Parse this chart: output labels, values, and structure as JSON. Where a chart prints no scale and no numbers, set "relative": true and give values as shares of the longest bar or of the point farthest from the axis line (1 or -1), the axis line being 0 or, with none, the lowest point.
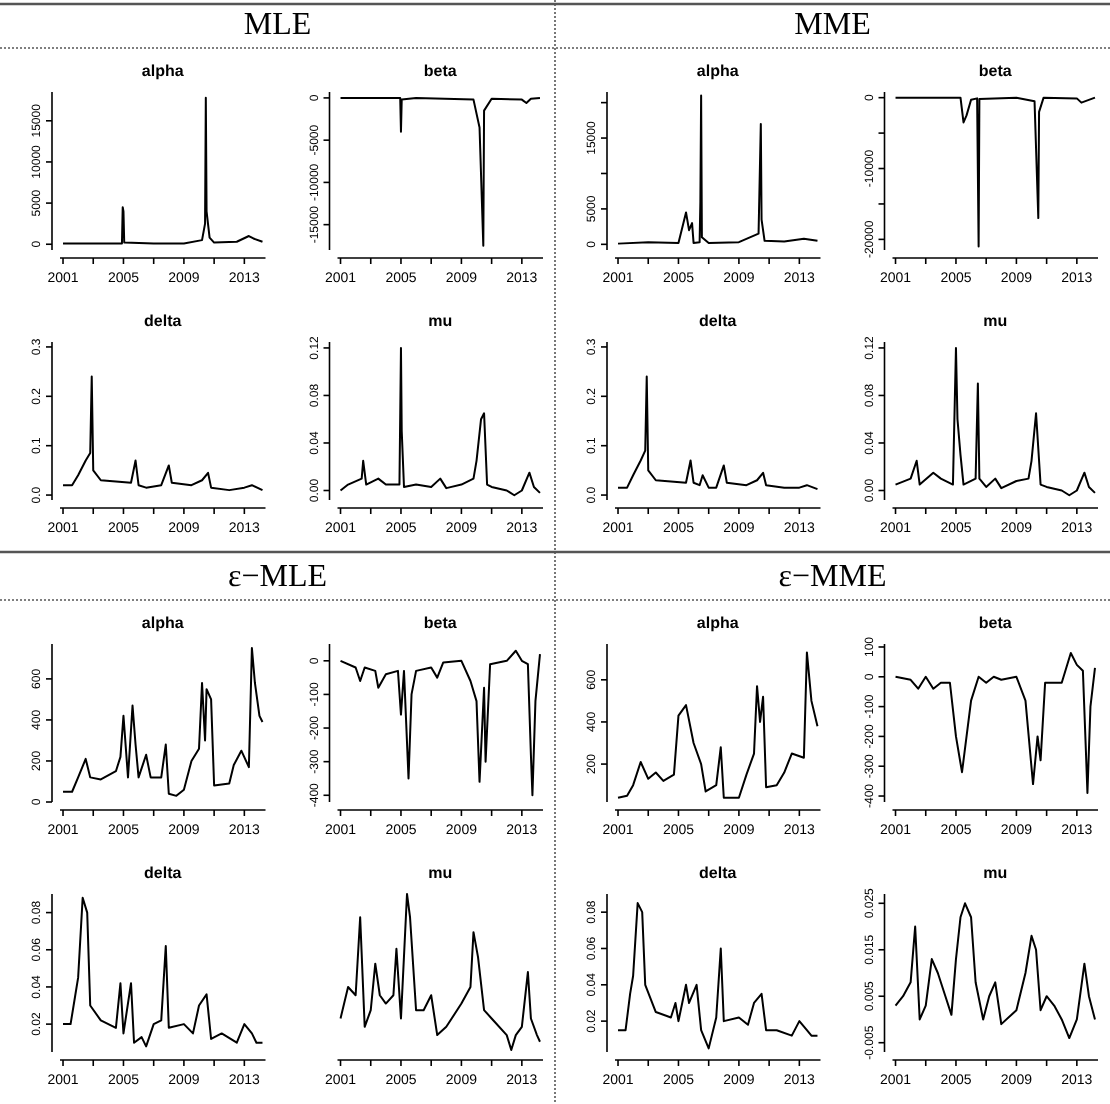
{
  "chart_data": [
    {
      "type": "other",
      "title": "MLE"
    },
    {
      "type": "line",
      "title": "alpha",
      "color": "#000000",
      "xlim": [
        2000.8,
        2014.4
      ],
      "xticks": [
        2001,
        {
          "value": 2003,
          "label": null
        },
        2005,
        {
          "value": 2007,
          "label": null
        },
        2009,
        {
          "value": 2011,
          "label": null
        },
        2013
      ],
      "ylim": [
        -700,
        18500
      ],
      "yticks": [
        0,
        5000,
        10000,
        15000
      ],
      "x": [
        2001,
        2003,
        2004.9,
        2004.95,
        2005,
        2005.05,
        2007,
        2009,
        2010.2,
        2010.4,
        2010.45,
        2010.5,
        2010.7,
        2011,
        2012.5,
        2013.3,
        2013.6,
        2014.2
      ],
      "values": [
        100,
        100,
        100,
        4500,
        4000,
        200,
        100,
        100,
        500,
        2500,
        17800,
        4000,
        800,
        200,
        300,
        1000,
        700,
        300
      ]
    },
    {
      "type": "line",
      "title": "beta",
      "color": "#000000",
      "xlim": [
        2000.8,
        2014.4
      ],
      "xticks": [
        2001,
        {
          "value": 2003,
          "label": null
        },
        2005,
        {
          "value": 2007,
          "label": null
        },
        2009,
        {
          "value": 2011,
          "label": null
        },
        2013
      ],
      "ylim": [
        -18000,
        700
      ],
      "yticks": [
        0,
        -5000,
        -10000,
        -15000
      ],
      "x": [
        2001,
        2004.95,
        2005,
        2005.05,
        2006,
        2009.8,
        2010.2,
        2010.45,
        2010.5,
        2011,
        2013,
        2013.3,
        2013.6,
        2014.2
      ],
      "values": [
        0,
        0,
        -4000,
        -200,
        0,
        -200,
        -3500,
        -17500,
        -1500,
        -100,
        -200,
        -600,
        -100,
        0
      ]
    },
    {
      "type": "line",
      "title": "delta",
      "color": "#000000",
      "xlim": [
        2000.8,
        2014.4
      ],
      "xticks": [
        2001,
        {
          "value": 2003,
          "label": null
        },
        2005,
        {
          "value": 2007,
          "label": null
        },
        2009,
        {
          "value": 2011,
          "label": null
        },
        2013
      ],
      "ylim": [
        -0.01,
        0.31
      ],
      "yticks": [
        {
          "value": 0,
          "label": "0.0"
        },
        0.1,
        0.2,
        0.3
      ],
      "x": [
        2001,
        2001.6,
        2002,
        2002.5,
        2002.8,
        2002.9,
        2003,
        2003.5,
        2005.5,
        2005.8,
        2006,
        2006.5,
        2007.5,
        2008,
        2008.2,
        2009.5,
        2010.2,
        2010.6,
        2010.8,
        2012,
        2013,
        2013.5,
        2014.2
      ],
      "values": [
        0.02,
        0.02,
        0.04,
        0.07,
        0.085,
        0.24,
        0.05,
        0.03,
        0.025,
        0.07,
        0.02,
        0.015,
        0.02,
        0.06,
        0.025,
        0.02,
        0.03,
        0.045,
        0.015,
        0.01,
        0.015,
        0.02,
        0.01
      ]
    },
    {
      "type": "line",
      "title": "mu",
      "color": "#000000",
      "xlim": [
        2000.8,
        2014.4
      ],
      "xticks": [
        2001,
        {
          "value": 2003,
          "label": null
        },
        2005,
        {
          "value": 2007,
          "label": null
        },
        2009,
        {
          "value": 2011,
          "label": null
        },
        2013
      ],
      "ylim": [
        -0.008,
        0.125
      ],
      "yticks": [
        {
          "value": 0,
          "label": "0.00"
        },
        0.04,
        0.08,
        0.12
      ],
      "x": [
        2001,
        2001.5,
        2002.4,
        2002.5,
        2002.7,
        2003.5,
        2004,
        2004.9,
        2005,
        2005.05,
        2005.2,
        2006,
        2007,
        2007.6,
        2008,
        2009,
        2009.8,
        2010,
        2010.3,
        2010.5,
        2010.7,
        2011,
        2012,
        2012.5,
        2013,
        2013.5,
        2013.8,
        2014.2
      ],
      "values": [
        0,
        0.005,
        0.01,
        0.025,
        0.005,
        0.01,
        0.005,
        0.005,
        0.12,
        0.05,
        0.003,
        0.005,
        0.003,
        0.01,
        0.002,
        0.005,
        0.01,
        0.025,
        0.06,
        0.065,
        0.005,
        0.003,
        0,
        -0.004,
        0,
        0.015,
        0.003,
        -0.002
      ]
    },
    {
      "type": "other",
      "title": "MME"
    },
    {
      "type": "line",
      "title": "alpha",
      "color": "#000000",
      "xlim": [
        2000.8,
        2014.4
      ],
      "xticks": [
        2001,
        {
          "value": 2003,
          "label": null
        },
        2005,
        {
          "value": 2007,
          "label": null
        },
        2009,
        {
          "value": 2011,
          "label": null
        },
        2013
      ],
      "ylim": [
        -800,
        21500
      ],
      "yticks": [
        0,
        5000,
        {
          "value": 10000,
          "label": null
        },
        15000,
        {
          "value": 20000,
          "label": null
        }
      ],
      "x": [
        2001,
        2003,
        2005,
        2005.5,
        2005.7,
        2005.9,
        2006,
        2006.4,
        2006.45,
        2006.5,
        2006.55,
        2007,
        2009,
        2010.3,
        2010.45,
        2010.5,
        2010.7,
        2012,
        2013.3,
        2014.2
      ],
      "values": [
        100,
        300,
        200,
        4500,
        2000,
        3000,
        200,
        300,
        6000,
        21000,
        1000,
        200,
        300,
        1500,
        17000,
        3500,
        500,
        400,
        800,
        500
      ]
    },
    {
      "type": "line",
      "title": "beta",
      "color": "#000000",
      "xlim": [
        2000.8,
        2014.4
      ],
      "xticks": [
        2001,
        {
          "value": 2003,
          "label": null
        },
        2005,
        {
          "value": 2007,
          "label": null
        },
        2009,
        {
          "value": 2011,
          "label": null
        },
        2013
      ],
      "ylim": [
        -21500,
        800
      ],
      "yticks": [
        0,
        {
          "value": -5000,
          "label": null
        },
        -10000,
        {
          "value": -15000,
          "label": null
        },
        -20000
      ],
      "x": [
        2001,
        2005.3,
        2005.5,
        2005.7,
        2006,
        2006.4,
        2006.5,
        2006.55,
        2009,
        2010.2,
        2010.45,
        2010.5,
        2010.8,
        2013,
        2013.3,
        2014.2
      ],
      "values": [
        0,
        0,
        -3500,
        -2500,
        -300,
        -100,
        -21000,
        -200,
        0,
        -500,
        -17000,
        -2000,
        0,
        -100,
        -700,
        0
      ]
    },
    {
      "type": "line",
      "title": "delta",
      "color": "#000000",
      "xlim": [
        2000.8,
        2014.4
      ],
      "xticks": [
        2001,
        {
          "value": 2003,
          "label": null
        },
        2005,
        {
          "value": 2007,
          "label": null
        },
        2009,
        {
          "value": 2011,
          "label": null
        },
        2013
      ],
      "ylim": [
        -0.01,
        0.31
      ],
      "yticks": [
        {
          "value": 0,
          "label": "0.0"
        },
        0.1,
        0.2,
        0.3
      ],
      "x": [
        2001,
        2001.6,
        2002,
        2002.5,
        2002.8,
        2002.9,
        2003,
        2003.5,
        2005.5,
        2005.8,
        2006,
        2006.4,
        2006.6,
        2007,
        2007.5,
        2008,
        2008.2,
        2009.5,
        2010.2,
        2010.6,
        2010.8,
        2012,
        2013,
        2013.5,
        2014.2
      ],
      "values": [
        0.015,
        0.015,
        0.04,
        0.07,
        0.09,
        0.24,
        0.05,
        0.03,
        0.025,
        0.07,
        0.025,
        0.02,
        0.04,
        0.015,
        0.015,
        0.06,
        0.025,
        0.02,
        0.03,
        0.045,
        0.02,
        0.015,
        0.015,
        0.02,
        0.012
      ]
    },
    {
      "type": "line",
      "title": "mu",
      "color": "#000000",
      "xlim": [
        2000.8,
        2014.4
      ],
      "xticks": [
        2001,
        {
          "value": 2003,
          "label": null
        },
        2005,
        {
          "value": 2007,
          "label": null
        },
        2009,
        {
          "value": 2011,
          "label": null
        },
        2013
      ],
      "ylim": [
        -0.008,
        0.125
      ],
      "yticks": [
        {
          "value": 0,
          "label": "0.00"
        },
        0.04,
        0.08,
        0.12
      ],
      "x": [
        2001,
        2002,
        2002.4,
        2002.6,
        2003.5,
        2004,
        2004.8,
        2005,
        2005.1,
        2005.3,
        2005.5,
        2006.3,
        2006.45,
        2006.55,
        2007,
        2007.6,
        2008,
        2009,
        2009.8,
        2010,
        2010.3,
        2010.6,
        2011,
        2012,
        2012.5,
        2013,
        2013.5,
        2013.8,
        2014.2
      ],
      "values": [
        0.005,
        0.01,
        0.025,
        0.005,
        0.015,
        0.01,
        0.005,
        0.12,
        0.06,
        0.03,
        0.005,
        0.01,
        0.09,
        0.01,
        0.003,
        0.01,
        0.002,
        0.008,
        0.01,
        0.025,
        0.065,
        0.005,
        0.003,
        0,
        -0.004,
        0,
        0.015,
        0.003,
        -0.002
      ]
    },
    {
      "type": "other",
      "title": "ε−MLE"
    },
    {
      "type": "line",
      "title": "alpha",
      "color": "#000000",
      "xlim": [
        2000.8,
        2014.4
      ],
      "xticks": [
        2001,
        {
          "value": 2003,
          "label": null
        },
        2005,
        {
          "value": 2007,
          "label": null
        },
        2009,
        {
          "value": 2011,
          "label": null
        },
        2013
      ],
      "ylim": [
        0,
        770
      ],
      "yticks": [
        0,
        200,
        400,
        600
      ],
      "x": [
        2001,
        2001.6,
        2002,
        2002.5,
        2002.8,
        2003.5,
        2004.5,
        2004.8,
        2005,
        2005.3,
        2005.6,
        2005.8,
        2006,
        2006.5,
        2006.8,
        2007.5,
        2007.8,
        2008,
        2008.5,
        2009,
        2009.5,
        2010,
        2010.2,
        2010.4,
        2010.5,
        2010.8,
        2011,
        2012,
        2012.3,
        2012.8,
        2013.3,
        2013.5,
        2013.7,
        2014,
        2014.2
      ],
      "values": [
        50,
        50,
        120,
        210,
        120,
        110,
        150,
        220,
        420,
        120,
        470,
        280,
        120,
        230,
        120,
        120,
        280,
        40,
        30,
        60,
        200,
        260,
        580,
        300,
        550,
        500,
        80,
        90,
        180,
        250,
        170,
        750,
        580,
        420,
        390
      ]
    },
    {
      "type": "line",
      "title": "beta",
      "color": "#000000",
      "xlim": [
        2000.8,
        2014.4
      ],
      "xticks": [
        2001,
        {
          "value": 2003,
          "label": null
        },
        2005,
        {
          "value": 2007,
          "label": null
        },
        2009,
        {
          "value": 2011,
          "label": null
        },
        2013
      ],
      "ylim": [
        -420,
        50
      ],
      "yticks": [
        0,
        -100,
        -200,
        -300,
        -400
      ],
      "x": [
        2001,
        2002,
        2002.3,
        2002.6,
        2003.3,
        2003.5,
        2004,
        2004.8,
        2005,
        2005.2,
        2005.5,
        2005.7,
        2006,
        2007,
        2007.4,
        2007.8,
        2009,
        2009.6,
        2010,
        2010.2,
        2010.5,
        2010.6,
        2010.9,
        2012,
        2012.6,
        2013,
        2013.4,
        2013.6,
        2013.7,
        2013.9,
        2014.2
      ],
      "values": [
        0,
        -20,
        -60,
        -20,
        -30,
        -80,
        -40,
        -30,
        -160,
        -30,
        -350,
        -100,
        -30,
        -20,
        -50,
        -5,
        0,
        -60,
        -120,
        -360,
        -80,
        -300,
        -10,
        0,
        30,
        0,
        -10,
        -280,
        -400,
        -120,
        20
      ]
    },
    {
      "type": "line",
      "title": "delta",
      "color": "#000000",
      "xlim": [
        2000.8,
        2014.4
      ],
      "xticks": [
        2001,
        {
          "value": 2003,
          "label": null
        },
        2005,
        {
          "value": 2007,
          "label": null
        },
        2009,
        {
          "value": 2011,
          "label": null
        },
        2013
      ],
      "ylim": [
        0.005,
        0.09
      ],
      "yticks": [
        0.02,
        0.04,
        0.06,
        0.08
      ],
      "x": [
        2001,
        2001.5,
        2001.8,
        2002,
        2002.3,
        2002.6,
        2002.8,
        2003.5,
        2004.5,
        2004.8,
        2005,
        2005.5,
        2005.7,
        2006.2,
        2006.5,
        2007,
        2007.5,
        2007.8,
        2008,
        2009,
        2009.6,
        2010,
        2010.5,
        2010.8,
        2011.5,
        2012.5,
        2013,
        2013.5,
        2013.8,
        2014.2
      ],
      "values": [
        0.02,
        0.02,
        0.035,
        0.045,
        0.088,
        0.08,
        0.03,
        0.022,
        0.018,
        0.042,
        0.015,
        0.042,
        0.01,
        0.013,
        0.008,
        0.02,
        0.022,
        0.062,
        0.018,
        0.02,
        0.015,
        0.03,
        0.036,
        0.012,
        0.015,
        0.01,
        0.02,
        0.015,
        0.01,
        0.01
      ]
    },
    {
      "type": "line",
      "title": "mu",
      "color": "#000000",
      "relative": true,
      "tick_labels": "x",
      "xlim": [
        2000.8,
        2014.4
      ],
      "xticks": [
        2001,
        {
          "value": 2003,
          "label": null
        },
        2005,
        {
          "value": 2007,
          "label": null
        },
        2009,
        {
          "value": 2011,
          "label": null
        },
        2013
      ],
      "x": [
        2001,
        2001.5,
        2002,
        2002.3,
        2002.6,
        2003,
        2003.3,
        2003.6,
        2004,
        2004.5,
        2004.7,
        2005,
        2005.4,
        2005.6,
        2006,
        2006.5,
        2007,
        2007.4,
        2008,
        2009,
        2009.6,
        2009.8,
        2010.1,
        2010.5,
        2011,
        2012,
        2012.3,
        2012.6,
        2013,
        2013.4,
        2013.6,
        2014,
        2014.2
      ],
      "values": [
        0.25,
        0.44,
        0.39,
        0.86,
        0.2,
        0.3,
        0.58,
        0.39,
        0.34,
        0.39,
        0.67,
        0.25,
        1,
        0.86,
        0.3,
        0.3,
        0.39,
        0.15,
        0.2,
        0.34,
        0.44,
        0.77,
        0.62,
        0.3,
        0.25,
        0.15,
        0.06,
        0.15,
        0.2,
        0.53,
        0.25,
        0.15,
        0.11
      ]
    },
    {
      "type": "other",
      "title": "ε−MME"
    },
    {
      "type": "line",
      "title": "alpha",
      "color": "#000000",
      "xlim": [
        2000.8,
        2014.4
      ],
      "xticks": [
        2001,
        {
          "value": 2003,
          "label": null
        },
        2005,
        {
          "value": 2007,
          "label": null
        },
        2009,
        {
          "value": 2011,
          "label": null
        },
        2013
      ],
      "ylim": [
        20,
        770
      ],
      "yticks": [
        200,
        400,
        600
      ],
      "x": [
        2001,
        2001.6,
        2002,
        2002.5,
        2003,
        2003.5,
        2004,
        2004.7,
        2005,
        2005.5,
        2006,
        2006.5,
        2006.8,
        2007.5,
        2007.8,
        2008,
        2009,
        2009.5,
        2010,
        2010.2,
        2010.4,
        2010.6,
        2010.8,
        2011.5,
        2012,
        2012.5,
        2013.3,
        2013.5,
        2013.8,
        2014.2
      ],
      "values": [
        40,
        50,
        100,
        210,
        130,
        160,
        120,
        150,
        430,
        480,
        300,
        200,
        70,
        100,
        280,
        40,
        40,
        150,
        250,
        570,
        400,
        520,
        90,
        100,
        160,
        250,
        230,
        730,
        500,
        380
      ]
    },
    {
      "type": "line",
      "title": "beta",
      "color": "#000000",
      "xlim": [
        2000.8,
        2014.4
      ],
      "xticks": [
        2001,
        {
          "value": 2003,
          "label": null
        },
        2005,
        {
          "value": 2007,
          "label": null
        },
        2009,
        {
          "value": 2011,
          "label": null
        },
        2013
      ],
      "ylim": [
        -420,
        110
      ],
      "yticks": [
        100,
        0,
        -100,
        -200,
        -300,
        -400
      ],
      "x": [
        2001,
        2002,
        2002.5,
        2003,
        2003.5,
        2004,
        2004.6,
        2005,
        2005.4,
        2005.7,
        2006,
        2006.5,
        2007,
        2007.5,
        2008,
        2009,
        2009.6,
        2010.1,
        2010.4,
        2010.6,
        2010.9,
        2012,
        2012.6,
        2013,
        2013.4,
        2013.6,
        2013.7,
        2013.9,
        2014.2
      ],
      "values": [
        0,
        -10,
        -40,
        0,
        -40,
        -20,
        -20,
        -200,
        -320,
        -200,
        -80,
        0,
        -20,
        0,
        -10,
        0,
        -80,
        -360,
        -200,
        -280,
        -20,
        -20,
        80,
        40,
        20,
        -250,
        -390,
        -100,
        30
      ]
    },
    {
      "type": "line",
      "title": "delta",
      "color": "#000000",
      "xlim": [
        2000.8,
        2014.4
      ],
      "xticks": [
        2001,
        {
          "value": 2003,
          "label": null
        },
        2005,
        {
          "value": 2007,
          "label": null
        },
        2009,
        {
          "value": 2011,
          "label": null
        },
        2013
      ],
      "ylim": [
        0.003,
        0.09
      ],
      "yticks": [
        0.02,
        0.04,
        0.06,
        0.08
      ],
      "x": [
        2001,
        2001.5,
        2001.8,
        2002,
        2002.3,
        2002.6,
        2002.8,
        2003.5,
        2004.5,
        2004.8,
        2005,
        2005.5,
        2005.7,
        2006.2,
        2006.5,
        2007,
        2007.5,
        2007.8,
        2008,
        2009,
        2009.6,
        2010,
        2010.5,
        2010.8,
        2011.5,
        2012.5,
        2013,
        2013.5,
        2013.8,
        2014.2
      ],
      "values": [
        0.015,
        0.015,
        0.035,
        0.045,
        0.085,
        0.08,
        0.04,
        0.025,
        0.022,
        0.03,
        0.02,
        0.04,
        0.03,
        0.04,
        0.015,
        0.005,
        0.022,
        0.06,
        0.02,
        0.022,
        0.018,
        0.03,
        0.035,
        0.015,
        0.015,
        0.012,
        0.02,
        0.015,
        0.012,
        0.012
      ]
    },
    {
      "type": "line",
      "title": "mu",
      "color": "#000000",
      "xlim": [
        2000.8,
        2014.4
      ],
      "xticks": [
        2001,
        {
          "value": 2003,
          "label": null
        },
        2005,
        {
          "value": 2007,
          "label": null
        },
        2009,
        {
          "value": 2011,
          "label": null
        },
        2013
      ],
      "ylim": [
        -0.007,
        0.027
      ],
      "yticks": [
        -0.005,
        0.005,
        0.015,
        0.025
      ],
      "x": [
        2001,
        2001.5,
        2002,
        2002.3,
        2002.6,
        2003,
        2003.4,
        2003.8,
        2004.3,
        2004.7,
        2005,
        2005.3,
        2005.6,
        2006,
        2006.3,
        2006.8,
        2007.2,
        2007.6,
        2008,
        2009,
        2009.6,
        2010,
        2010.3,
        2010.6,
        2011,
        2011.5,
        2012,
        2012.5,
        2013,
        2013.5,
        2013.8,
        2014.2
      ],
      "values": [
        0.003,
        0.005,
        0.008,
        0.02,
        0,
        0.003,
        0.013,
        0.01,
        0.005,
        0.001,
        0.013,
        0.022,
        0.025,
        0.022,
        0.008,
        0,
        0.005,
        0.008,
        -0.001,
        0.002,
        0.01,
        0.018,
        0.015,
        0.002,
        0.005,
        0.003,
        0,
        -0.004,
        0,
        0.012,
        0.005,
        0
      ]
    }
  ]
}
